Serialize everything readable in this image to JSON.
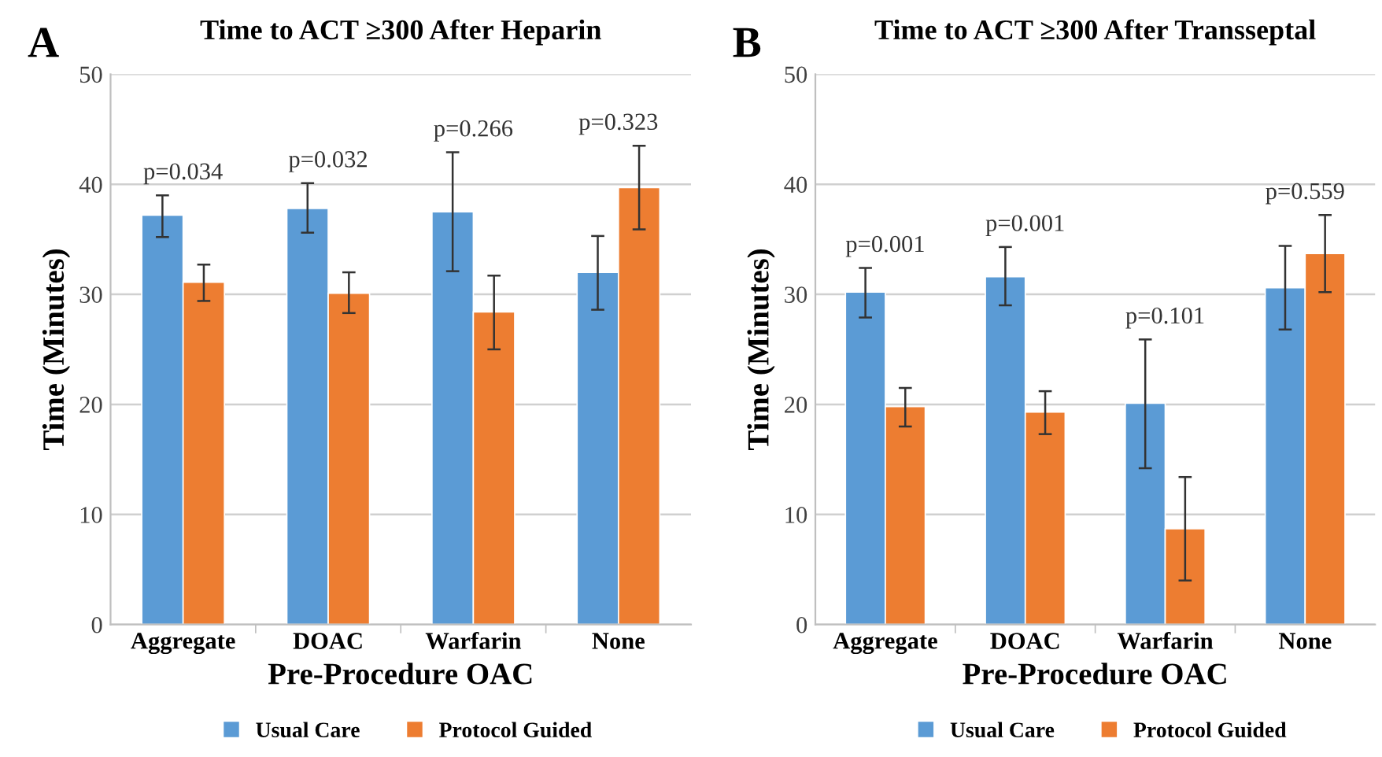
{
  "chart_data": [
    {
      "type": "bar",
      "title": "Time to ACT ≥300 After Heparin",
      "xlabel": "Pre-Procedure OAC",
      "ylabel": "Time (Minutes)",
      "categories": [
        "Aggregate",
        "DOAC",
        "Warfarin",
        "None"
      ],
      "series": [
        {
          "name": "Usual Care",
          "color": "#5b9bd5",
          "values": [
            37.2,
            37.8,
            37.5,
            32.0
          ],
          "errors": [
            [
              35.2,
              39.0
            ],
            [
              35.6,
              40.1
            ],
            [
              32.1,
              42.9
            ],
            [
              28.6,
              35.3
            ]
          ]
        },
        {
          "name": "Protocol Guided",
          "color": "#ed7d31",
          "values": [
            31.1,
            30.1,
            28.4,
            39.7
          ],
          "errors": [
            [
              29.4,
              32.7
            ],
            [
              28.3,
              32.0
            ],
            [
              25.0,
              31.7
            ],
            [
              35.9,
              43.5
            ]
          ]
        }
      ],
      "ylim": [
        0,
        50
      ],
      "yticks": [
        0,
        10,
        20,
        30,
        40,
        50
      ],
      "grid": "y",
      "legend": "bottom",
      "annotations": [
        "A",
        "p=0.034",
        "p=0.032",
        "p=0.266",
        "p=0.323"
      ]
    },
    {
      "type": "bar",
      "title": "Time to ACT ≥300 After Transseptal",
      "xlabel": "Pre-Procedure OAC",
      "ylabel": "Time (Minutes)",
      "categories": [
        "Aggregate",
        "DOAC",
        "Warfarin",
        "None"
      ],
      "series": [
        {
          "name": "Usual Care",
          "color": "#5b9bd5",
          "values": [
            30.2,
            31.6,
            20.1,
            30.6
          ],
          "errors": [
            [
              27.9,
              32.4
            ],
            [
              29.0,
              34.3
            ],
            [
              14.2,
              25.9
            ],
            [
              26.8,
              34.4
            ]
          ]
        },
        {
          "name": "Protocol Guided",
          "color": "#ed7d31",
          "values": [
            19.8,
            19.3,
            8.7,
            33.7
          ],
          "errors": [
            [
              18.0,
              21.5
            ],
            [
              17.3,
              21.2
            ],
            [
              4.0,
              13.4
            ],
            [
              30.2,
              37.2
            ]
          ]
        }
      ],
      "ylim": [
        0,
        50
      ],
      "yticks": [
        0,
        10,
        20,
        30,
        40,
        50
      ],
      "grid": "y",
      "legend": "bottom",
      "annotations": [
        "B",
        "p=0.001",
        "p=0.001",
        "p=0.101",
        "p=0.559"
      ]
    }
  ]
}
